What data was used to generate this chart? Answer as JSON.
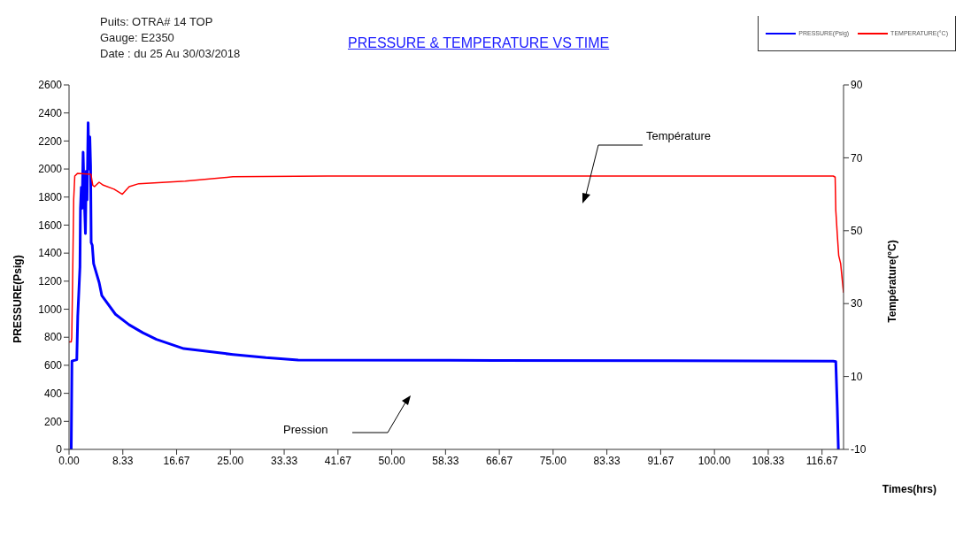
{
  "chart_data": {
    "type": "line",
    "title": "PRESSURE & TEMPERATURE  VS TIME",
    "xlabel": "Times(hrs)",
    "ylabel": "PRESSURE(Psig)",
    "y2label": "Température(°C)",
    "annotations": [
      "Puits: OTRA#  14 TOP",
      "Gauge: E2350",
      "Date  : du 25 Au 30/03/2018",
      "Température",
      "Pression"
    ],
    "legend": "top right",
    "marker": "none",
    "line_style": "solid",
    "xlim": [
      0,
      120
    ],
    "xticks": [
      {
        "value": 0,
        "label": "0.00"
      },
      {
        "value": 8.333,
        "label": "8.33"
      },
      {
        "value": 16.667,
        "label": "16.67"
      },
      {
        "value": 25,
        "label": "25.00"
      },
      {
        "value": 33.333,
        "label": "33.33"
      },
      {
        "value": 41.667,
        "label": "41.67"
      },
      {
        "value": 50,
        "label": "50.00"
      },
      {
        "value": 58.333,
        "label": "58.33"
      },
      {
        "value": 66.667,
        "label": "66.67"
      },
      {
        "value": 75,
        "label": "75.00"
      },
      {
        "value": 83.333,
        "label": "83.33"
      },
      {
        "value": 91.667,
        "label": "91.67"
      },
      {
        "value": 100,
        "label": "100.00"
      },
      {
        "value": 108.333,
        "label": "108.33"
      },
      {
        "value": 116.667,
        "label": "116.67"
      }
    ],
    "ylim": [
      0,
      2600
    ],
    "yticks": [
      0,
      200,
      400,
      600,
      800,
      1000,
      1200,
      1400,
      1600,
      1800,
      2000,
      2200,
      2400,
      2600
    ],
    "y2lim": [
      -10,
      90
    ],
    "y2ticks": [
      -10,
      10,
      30,
      50,
      70,
      90
    ],
    "series": [
      {
        "name": "PRESSURE(Psig)",
        "color": "#0000ff",
        "x": [
          0.34,
          0.45,
          1.2,
          1.35,
          1.69,
          1.77,
          1.9,
          2.02,
          2.18,
          2.33,
          2.54,
          2.67,
          2.79,
          2.96,
          3.09,
          3.22,
          3.34,
          3.43,
          3.6,
          3.81,
          4.66,
          5.08,
          7.19,
          9.31,
          11.43,
          13.54,
          17.77,
          25.4,
          30.5,
          35.5,
          66,
          118.4,
          118.8,
          119.03,
          119.2
        ],
        "values": [
          0,
          630,
          640,
          950,
          1300,
          1720,
          1870,
          1720,
          2120,
          1830,
          1540,
          1985,
          1780,
          2330,
          2000,
          2230,
          2020,
          1475,
          1456,
          1324,
          1191,
          1097,
          964,
          889,
          832,
          785,
          719,
          677,
          654,
          637,
          635,
          630,
          626,
          300,
          0
        ]
      },
      {
        "name": "TEMPERATURE(°C)",
        "color": "#ff0000",
        "axis": "y2",
        "x": [
          0,
          0.34,
          0.42,
          0.55,
          0.72,
          0.89,
          1.3,
          3.39,
          3.68,
          3.94,
          4.66,
          5.3,
          6.99,
          8.26,
          9.32,
          10.8,
          13.8,
          18.0,
          25.4,
          40,
          118.4,
          118.7,
          118.8,
          119.03,
          119.25,
          119.55,
          120
        ],
        "values": [
          19.5,
          19.5,
          20.6,
          36,
          58.5,
          65,
          65.7,
          65.5,
          62.4,
          62.1,
          63.3,
          62.5,
          61.4,
          60,
          62.1,
          62.9,
          63.2,
          63.6,
          64.8,
          65,
          65,
          64.7,
          55.6,
          49,
          43.2,
          41,
          33
        ]
      }
    ]
  }
}
